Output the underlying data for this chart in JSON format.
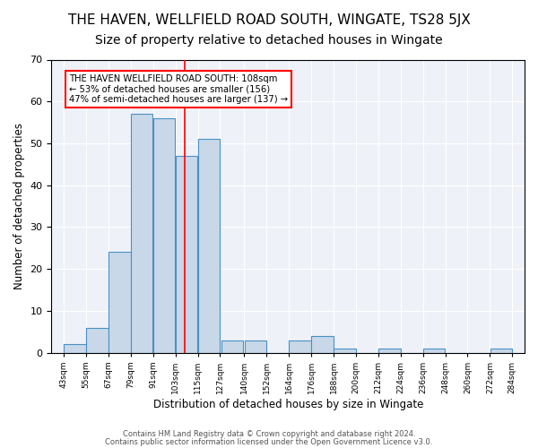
{
  "title": "THE HAVEN, WELLFIELD ROAD SOUTH, WINGATE, TS28 5JX",
  "subtitle": "Size of property relative to detached houses in Wingate",
  "xlabel": "Distribution of detached houses by size in Wingate",
  "ylabel": "Number of detached properties",
  "bin_labels": [
    "43sqm",
    "55sqm",
    "67sqm",
    "79sqm",
    "91sqm",
    "103sqm",
    "115sqm",
    "127sqm",
    "140sqm",
    "152sqm",
    "164sqm",
    "176sqm",
    "188sqm",
    "200sqm",
    "212sqm",
    "224sqm",
    "236sqm",
    "248sqm",
    "260sqm",
    "272sqm",
    "284sqm"
  ],
  "bin_edges": [
    43,
    55,
    67,
    79,
    91,
    103,
    115,
    127,
    140,
    152,
    164,
    176,
    188,
    200,
    212,
    224,
    236,
    248,
    260,
    272,
    284
  ],
  "values": [
    2,
    6,
    24,
    57,
    56,
    47,
    51,
    3,
    3,
    0,
    3,
    4,
    1,
    0,
    1,
    0,
    1,
    0,
    0,
    1
  ],
  "bar_color": "#c8d8e8",
  "bar_edge_color": "#4a90c4",
  "red_line_x": 108,
  "annotation_text": "THE HAVEN WELLFIELD ROAD SOUTH: 108sqm\n← 53% of detached houses are smaller (156)\n47% of semi-detached houses are larger (137) →",
  "annotation_box_color": "white",
  "annotation_box_edge_color": "red",
  "ylim": [
    0,
    70
  ],
  "yticks": [
    0,
    10,
    20,
    30,
    40,
    50,
    60,
    70
  ],
  "background_color": "#eef2f8",
  "footer1": "Contains HM Land Registry data © Crown copyright and database right 2024.",
  "footer2": "Contains public sector information licensed under the Open Government Licence v3.0.",
  "title_fontsize": 11,
  "subtitle_fontsize": 10
}
